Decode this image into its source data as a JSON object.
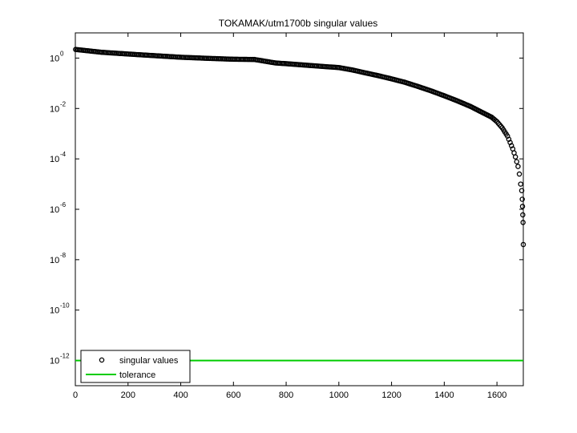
{
  "chart_data": {
    "type": "scatter",
    "title": "TOKAMAK/utm1700b singular values",
    "xlabel": "",
    "ylabel": "",
    "xlim": [
      0,
      1700
    ],
    "ylim": [
      1e-13,
      10.0
    ],
    "yscale": "log",
    "grid": false,
    "legend_position": "bottom-left",
    "x_ticks": [
      0,
      200,
      400,
      600,
      800,
      1000,
      1200,
      1400,
      1600
    ],
    "y_ticks": [
      {
        "exp": 0,
        "base": "10",
        "sup": "0"
      },
      {
        "exp": -2,
        "base": "10",
        "sup": "-2"
      },
      {
        "exp": -4,
        "base": "10",
        "sup": "-4"
      },
      {
        "exp": -6,
        "base": "10",
        "sup": "-6"
      },
      {
        "exp": -8,
        "base": "10",
        "sup": "-8"
      },
      {
        "exp": -10,
        "base": "10",
        "sup": "-10"
      },
      {
        "exp": -12,
        "base": "10",
        "sup": "-12"
      }
    ],
    "series": [
      {
        "name": "singular values",
        "marker": "circle",
        "color": "#000000",
        "x": [
          1,
          100,
          200,
          300,
          400,
          500,
          600,
          680,
          720,
          760,
          800,
          900,
          1000,
          1050,
          1100,
          1150,
          1200,
          1250,
          1300,
          1350,
          1400,
          1450,
          1500,
          1550,
          1580,
          1600,
          1620,
          1640,
          1660,
          1670,
          1680,
          1685,
          1690,
          1694,
          1696,
          1697,
          1698,
          1699,
          1700
        ],
        "y": [
          2.2,
          1.7,
          1.45,
          1.25,
          1.08,
          0.98,
          0.9,
          0.88,
          0.75,
          0.64,
          0.6,
          0.5,
          0.42,
          0.34,
          0.26,
          0.2,
          0.15,
          0.11,
          0.075,
          0.05,
          0.032,
          0.02,
          0.012,
          0.0065,
          0.0045,
          0.003,
          0.0017,
          0.0008,
          0.00025,
          0.00012,
          5e-05,
          2.5e-05,
          1e-05,
          5.5e-06,
          2.5e-06,
          1.3e-06,
          6e-07,
          3e-07,
          4e-08
        ]
      },
      {
        "name": "tolerance",
        "style": "line",
        "color": "#00cc00",
        "x": [
          0,
          1700
        ],
        "y": [
          1e-12,
          1e-12
        ]
      }
    ]
  }
}
